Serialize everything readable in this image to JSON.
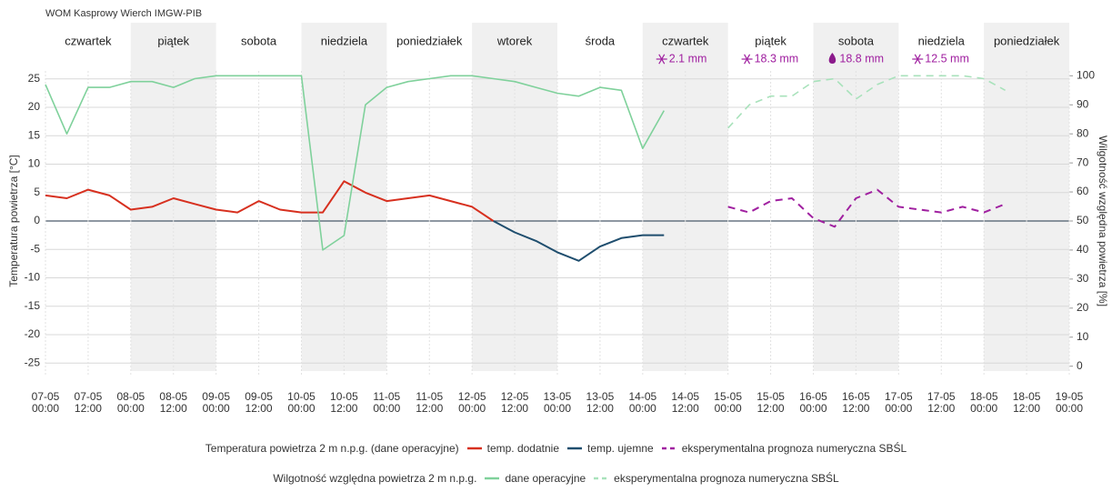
{
  "chart_data": {
    "type": "line",
    "title": "WOM Kasprowy Wierch IMGW-PIB",
    "y_label": "Temperatura powietrza [°C]",
    "y2_label": "Wilgotność względna powietrza [%]",
    "days": [
      {
        "label": "czwartek"
      },
      {
        "label": "piątek"
      },
      {
        "label": "sobota"
      },
      {
        "label": "niedziela"
      },
      {
        "label": "poniedziałek"
      },
      {
        "label": "wtorek"
      },
      {
        "label": "środa"
      },
      {
        "label": "czwartek",
        "precip": "2.1 mm"
      },
      {
        "label": "piątek",
        "precip": "18.3 mm"
      },
      {
        "label": "sobota",
        "precip": "18.8 mm"
      },
      {
        "label": "niedziela",
        "precip": "12.5 mm"
      },
      {
        "label": "poniedziałek"
      }
    ],
    "legend_titles": [
      "Temperatura powietrza 2 m n.p.g. (dane operacyjne)",
      "Wilgotność względna powietrza 2 m n.p.g."
    ],
    "xlim": [
      "07-05 00:00",
      "19-05 00:00"
    ],
    "xticks": [
      "07-05 00:00",
      "07-05 12:00",
      "08-05 00:00",
      "08-05 12:00",
      "09-05 00:00",
      "09-05 12:00",
      "10-05 00:00",
      "10-05 12:00",
      "11-05 00:00",
      "11-05 12:00",
      "12-05 00:00",
      "12-05 12:00",
      "13-05 00:00",
      "13-05 12:00",
      "14-05 00:00",
      "14-05 12:00",
      "15-05 00:00",
      "15-05 12:00",
      "16-05 00:00",
      "16-05 12:00",
      "17-05 00:00",
      "17-05 12:00",
      "18-05 00:00",
      "18-05 12:00",
      "19-05 00:00"
    ],
    "ylim": [
      -28,
      28
    ],
    "yticks": [
      -25,
      -20,
      -15,
      -10,
      -5,
      0,
      5,
      10,
      15,
      20,
      25
    ],
    "y2lim": [
      -4.8,
      104.8
    ],
    "y2ticks": [
      0,
      10,
      20,
      30,
      40,
      50,
      60,
      70,
      80,
      90,
      100
    ],
    "grid": true,
    "series": [
      {
        "name": "temp. dodatnie",
        "color": "#d7301f",
        "axis": "y",
        "dash": false,
        "x": [
          "07-05 00:00",
          "07-05 06:00",
          "07-05 12:00",
          "07-05 18:00",
          "08-05 00:00",
          "08-05 06:00",
          "08-05 12:00",
          "08-05 18:00",
          "09-05 00:00",
          "09-05 06:00",
          "09-05 12:00",
          "09-05 18:00",
          "10-05 00:00",
          "10-05 06:00",
          "10-05 12:00",
          "10-05 18:00",
          "11-05 00:00",
          "11-05 06:00",
          "11-05 12:00",
          "11-05 18:00",
          "12-05 00:00",
          "12-05 06:00"
        ],
        "values": [
          4.5,
          4,
          5.5,
          4.5,
          2,
          2.5,
          4,
          3,
          2,
          1.5,
          3.5,
          2,
          1.5,
          1.5,
          7,
          5,
          3.5,
          4,
          4.5,
          3.5,
          2.5,
          0
        ]
      },
      {
        "name": "temp. ujemne",
        "color": "#1f4e6e",
        "axis": "y",
        "dash": false,
        "x": [
          "12-05 06:00",
          "12-05 12:00",
          "12-05 18:00",
          "13-05 00:00",
          "13-05 06:00",
          "13-05 12:00",
          "13-05 18:00",
          "14-05 00:00",
          "14-05 06:00"
        ],
        "values": [
          0,
          -2,
          -3.5,
          -5.5,
          -7,
          -4.5,
          -3,
          -2.5,
          -2.5
        ]
      },
      {
        "name": "eksperymentalna prognoza numeryczna SBŚL",
        "color": "#a020a0",
        "axis": "y",
        "dash": true,
        "x": [
          "15-05 00:00",
          "15-05 06:00",
          "15-05 12:00",
          "15-05 18:00",
          "16-05 00:00",
          "16-05 06:00",
          "16-05 12:00",
          "16-05 18:00",
          "17-05 00:00",
          "17-05 06:00",
          "17-05 12:00",
          "17-05 18:00",
          "18-05 00:00",
          "18-05 06:00"
        ],
        "values": [
          2.5,
          1.5,
          3.5,
          4,
          0.5,
          -1,
          4,
          5.5,
          2.5,
          2,
          1.5,
          2.5,
          1.5,
          3
        ]
      },
      {
        "name": "dane operacyjne",
        "color": "#7fd19b",
        "axis": "y2",
        "dash": false,
        "x": [
          "07-05 00:00",
          "07-05 06:00",
          "07-05 12:00",
          "07-05 18:00",
          "08-05 00:00",
          "08-05 06:00",
          "08-05 12:00",
          "08-05 18:00",
          "09-05 00:00",
          "09-05 06:00",
          "09-05 12:00",
          "09-05 18:00",
          "10-05 00:00",
          "10-05 06:00",
          "10-05 12:00",
          "10-05 18:00",
          "11-05 00:00",
          "11-05 06:00",
          "11-05 12:00",
          "11-05 18:00",
          "12-05 00:00",
          "12-05 06:00",
          "12-05 12:00",
          "12-05 18:00",
          "13-05 00:00",
          "13-05 06:00",
          "13-05 12:00",
          "13-05 18:00",
          "14-05 00:00",
          "14-05 06:00"
        ],
        "values": [
          97,
          80,
          96,
          96,
          98,
          98,
          96,
          99,
          100,
          100,
          100,
          100,
          100,
          40,
          45,
          90,
          96,
          98,
          99,
          100,
          100,
          99,
          98,
          96,
          94,
          93,
          96,
          95,
          75,
          88
        ]
      },
      {
        "name": "eksperymentalna prognoza numeryczna SBŚL",
        "color": "#a8e2bb",
        "axis": "y2",
        "dash": true,
        "x": [
          "15-05 00:00",
          "15-05 06:00",
          "15-05 12:00",
          "15-05 18:00",
          "16-05 00:00",
          "16-05 06:00",
          "16-05 12:00",
          "16-05 18:00",
          "17-05 00:00",
          "17-05 06:00",
          "17-05 12:00",
          "17-05 18:00",
          "18-05 00:00",
          "18-05 06:00"
        ],
        "values": [
          82,
          90,
          93,
          93,
          98,
          99,
          92,
          97,
          100,
          100,
          100,
          100,
          99,
          95
        ]
      }
    ]
  }
}
